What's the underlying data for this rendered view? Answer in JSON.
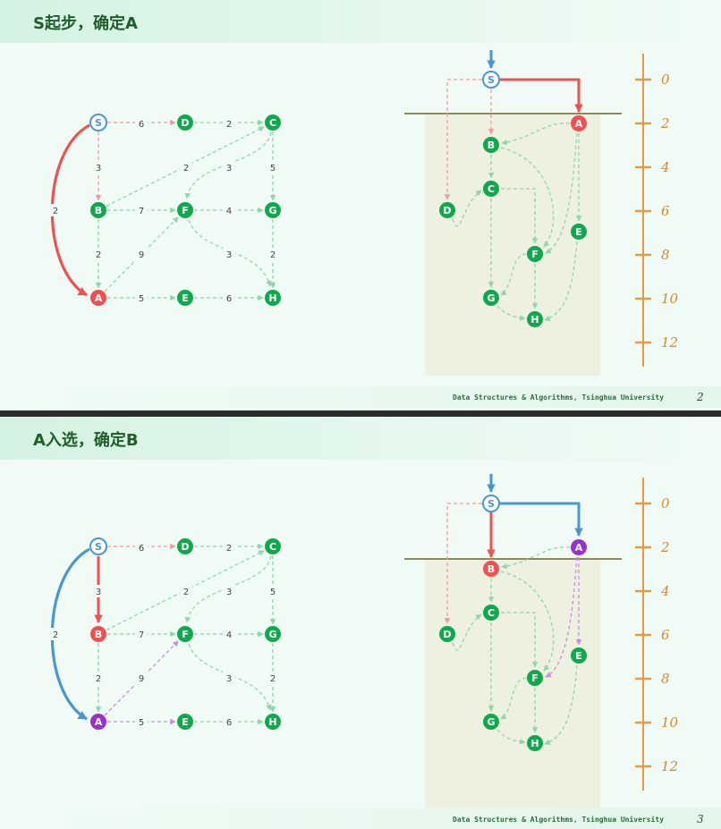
{
  "slides": [
    {
      "title": "S起步，确定A",
      "footer": "Data Structures & Algorithms, Tsinghua University",
      "page": "2",
      "graph_nodes": [
        "S",
        "D",
        "C",
        "B",
        "F",
        "G",
        "A",
        "E",
        "H"
      ],
      "graph_weights": [
        "6",
        "2",
        "3",
        "2",
        "3",
        "5",
        "2",
        "7",
        "4",
        "2",
        "9",
        "3",
        "2",
        "5",
        "6"
      ],
      "tree_nodes": [
        "S",
        "A",
        "B",
        "C",
        "D",
        "E",
        "F",
        "G",
        "H"
      ],
      "scale": [
        "0",
        "2",
        "4",
        "6",
        "8",
        "10",
        "12"
      ]
    },
    {
      "title": "A入选，确定B",
      "footer": "Data Structures & Algorithms, Tsinghua University",
      "page": "3",
      "graph_nodes": [
        "S",
        "D",
        "C",
        "B",
        "F",
        "G",
        "A",
        "E",
        "H"
      ],
      "graph_weights": [
        "6",
        "2",
        "3",
        "2",
        "3",
        "5",
        "2",
        "7",
        "4",
        "2",
        "9",
        "3",
        "2",
        "5",
        "6"
      ],
      "tree_nodes": [
        "S",
        "A",
        "B",
        "C",
        "D",
        "E",
        "F",
        "G",
        "H"
      ],
      "scale": [
        "0",
        "2",
        "4",
        "6",
        "8",
        "10",
        "12"
      ]
    }
  ],
  "colors": {
    "source": "#4a97d0",
    "selected": "#f05050",
    "done": "#9b2fcf",
    "normal": "#0fa84c",
    "edge_normal": "#8fd6a8",
    "edge_red": "#f39a9a",
    "edge_purple": "#c98ce8",
    "scale": "#e59a45",
    "shade": "#eef0e0",
    "level_line": "#8a8a5a"
  }
}
